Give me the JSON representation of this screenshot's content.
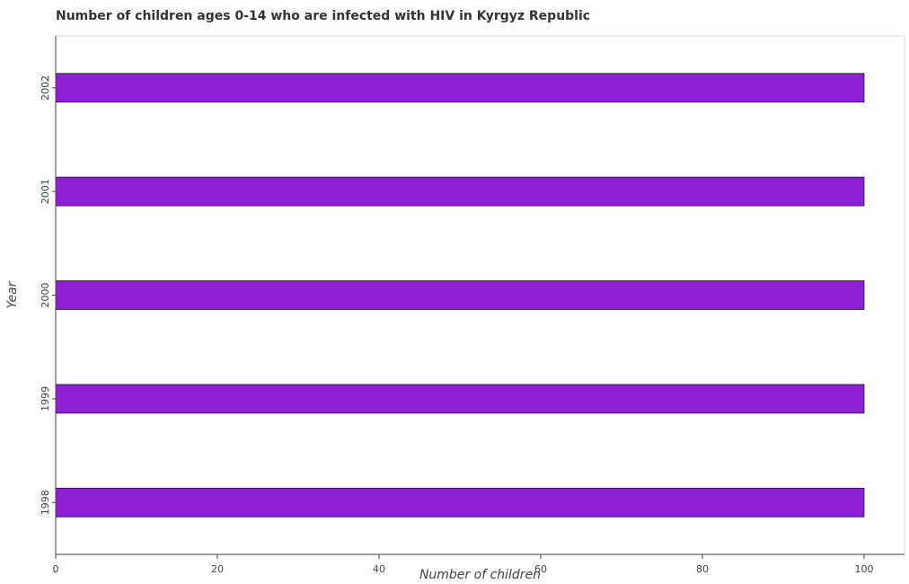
{
  "chart_data": {
    "type": "bar",
    "orientation": "horizontal",
    "title": "Number of children ages 0-14 who are infected with HIV in Kyrgyz Republic",
    "xlabel": "Number of children",
    "ylabel": "Year",
    "categories": [
      "1998",
      "1999",
      "2000",
      "2001",
      "2002"
    ],
    "values": [
      100,
      100,
      100,
      100,
      100
    ],
    "xlim": [
      0,
      105
    ],
    "x_ticks": [
      0,
      20,
      40,
      60,
      80,
      100
    ],
    "x_tick_labels": [
      "0",
      "20",
      "40",
      "60",
      "80",
      "100"
    ],
    "grid": false,
    "legend": "none",
    "bar_color": "#8b1fd1",
    "bar_edge_color": "#222222"
  }
}
